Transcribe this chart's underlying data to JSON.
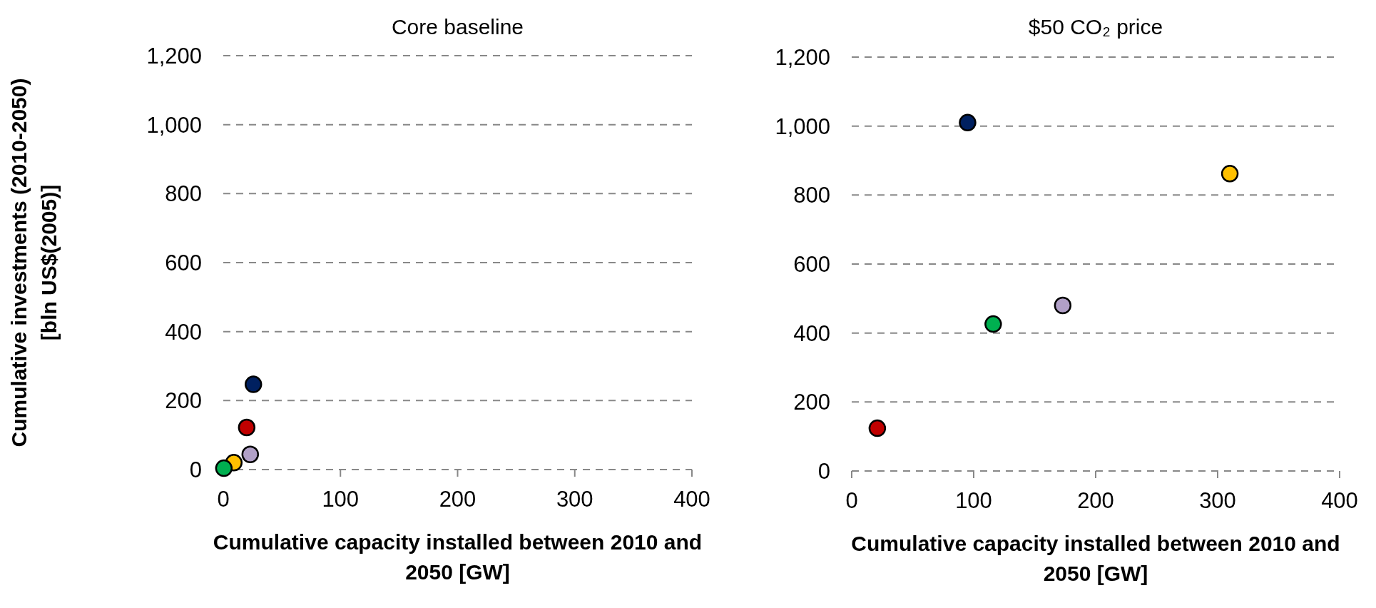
{
  "chart_data": [
    {
      "type": "scatter",
      "title": "Core baseline",
      "xlabel": "Cumulative capacity installed between 2010 and 2050  [GW]",
      "ylabel": "Cumulative investments (2010-2050)  [bln US$(2005)]",
      "x": [
        25.7,
        20,
        23,
        9,
        0.5
      ],
      "values": [
        247,
        122,
        44,
        20,
        4
      ],
      "colors": [
        "#002060",
        "#c00000",
        "#b1a0c7",
        "#ffc000",
        "#00b050"
      ],
      "xlim": [
        0,
        400
      ],
      "xticks": [
        0,
        100,
        200,
        300,
        400
      ],
      "ylim": [
        0,
        1200
      ],
      "yticks": [
        0,
        {
          "value": 200,
          "label": "200"
        },
        {
          "value": 400,
          "label": "400"
        },
        {
          "value": 600,
          "label": "600"
        },
        {
          "value": 800,
          "label": "800"
        },
        {
          "value": 1000,
          "label": "1,000"
        },
        {
          "value": 1200,
          "label": "1,200"
        }
      ],
      "grid": "y",
      "marker": "circle"
    },
    {
      "type": "scatter",
      "title": "$50 CO₂ price",
      "xlabel": "Cumulative capacity installed between 2010 and 2050  [GW]",
      "x": [
        95,
        21,
        173,
        310,
        116
      ],
      "values": [
        1010,
        124,
        480,
        862,
        426
      ],
      "colors": [
        "#002060",
        "#c00000",
        "#b1a0c7",
        "#ffc000",
        "#00b050"
      ],
      "xlim": [
        0,
        400
      ],
      "xticks": [
        0,
        100,
        200,
        300,
        400
      ],
      "ylim": [
        0,
        1200
      ],
      "yticks": [
        0,
        200,
        400,
        600,
        800,
        {
          "value": 1000,
          "label": "1,000"
        },
        {
          "value": 1200,
          "label": "1,200"
        }
      ],
      "grid": "y",
      "marker": "circle"
    }
  ]
}
